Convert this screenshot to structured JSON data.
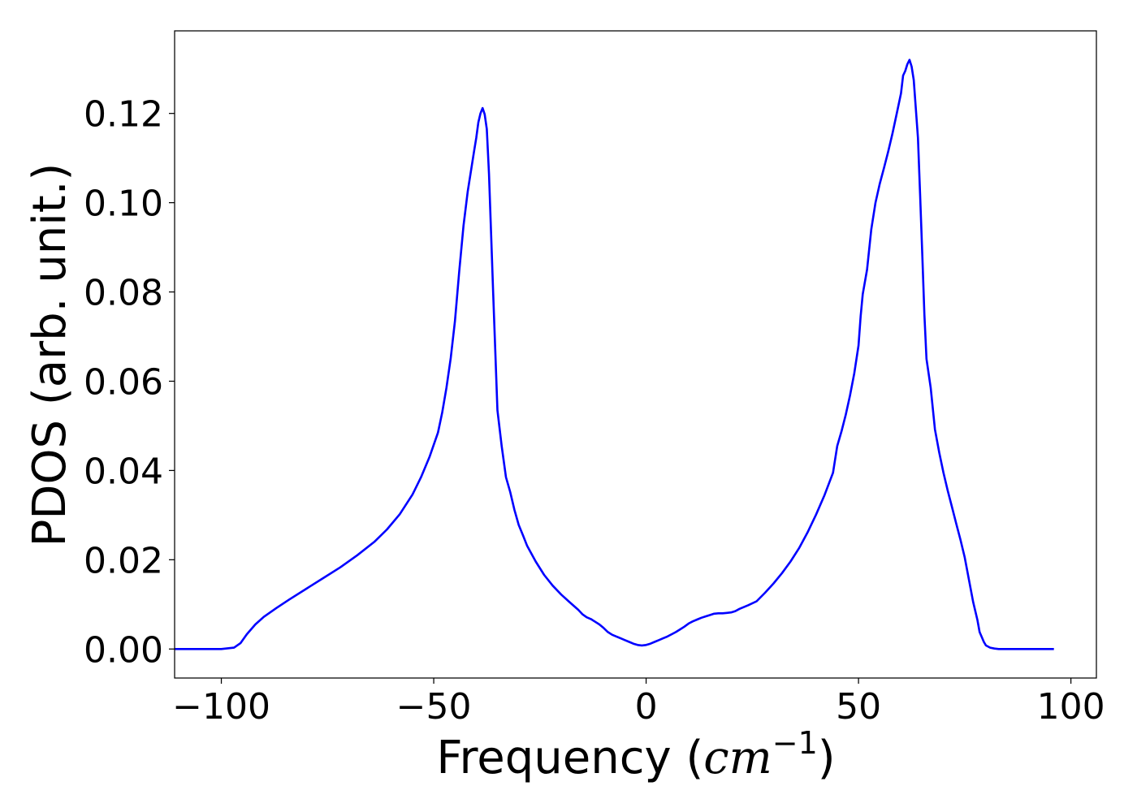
{
  "chart_data": {
    "type": "line",
    "title": "",
    "xlabel_main": "Frequency (",
    "xlabel_italic": "cm",
    "xlabel_sup": "−1",
    "xlabel_close": ")",
    "ylabel": "PDOS (arb. unit.)",
    "xlim": [
      -111,
      106
    ],
    "ylim": [
      -0.0065,
      0.1385
    ],
    "xticks": [
      -100,
      -50,
      0,
      50,
      100
    ],
    "xtick_labels": [
      "−100",
      "−50",
      "0",
      "50",
      "100"
    ],
    "yticks": [
      0.0,
      0.02,
      0.04,
      0.06,
      0.08,
      0.1,
      0.12
    ],
    "ytick_labels": [
      "0.00",
      "0.02",
      "0.04",
      "0.06",
      "0.08",
      "0.10",
      "0.12"
    ],
    "grid": false,
    "series": [
      {
        "color": "#0000ff",
        "x": [
          -111,
          -100,
          -97,
          -95.5,
          -94,
          -92,
          -90,
          -87,
          -84,
          -80,
          -76,
          -72,
          -68,
          -64,
          -61,
          -58,
          -55,
          -53,
          -51,
          -49,
          -48,
          -47,
          -46,
          -45,
          -44,
          -43,
          -42,
          -41,
          -40.5,
          -40,
          -39.5,
          -39,
          -38.5,
          -38,
          -37.5,
          -37,
          -36.5,
          -36,
          -35,
          -34,
          -33,
          -32,
          -31,
          -30,
          -29,
          -28,
          -26,
          -24,
          -22,
          -20,
          -18,
          -16,
          -15,
          -14,
          -13,
          -12,
          -11,
          -10,
          -9,
          -8,
          -7,
          -6,
          -5,
          -4,
          -3,
          -2,
          -1,
          0,
          1,
          2,
          3,
          4,
          5,
          6,
          7,
          8,
          9,
          10,
          11,
          12,
          13,
          14,
          15,
          16,
          17,
          18,
          19,
          20,
          21,
          22,
          24,
          26,
          28,
          30,
          32,
          34,
          36,
          38,
          40,
          42,
          44,
          45,
          46,
          47,
          48,
          49,
          50,
          50.5,
          51,
          52,
          53,
          54,
          55,
          56,
          57,
          58,
          59,
          60,
          60.5,
          61,
          61.5,
          62,
          62.5,
          63,
          63.5,
          64,
          64.5,
          65,
          65.5,
          66,
          67,
          68,
          69,
          70,
          71,
          72,
          73,
          74,
          75,
          76,
          77,
          78,
          78.5,
          79,
          79.5,
          80,
          81,
          82,
          83,
          85,
          96
        ],
        "y": [
          0.0,
          0.0,
          0.0003,
          0.0013,
          0.0033,
          0.0055,
          0.0072,
          0.0092,
          0.0111,
          0.0135,
          0.0159,
          0.0183,
          0.021,
          0.024,
          0.0268,
          0.0302,
          0.0346,
          0.0385,
          0.043,
          0.0485,
          0.053,
          0.0585,
          0.0652,
          0.0735,
          0.0845,
          0.0948,
          0.1025,
          0.1085,
          0.1115,
          0.1145,
          0.118,
          0.12,
          0.1212,
          0.1198,
          0.1165,
          0.1065,
          0.093,
          0.0795,
          0.0535,
          0.0455,
          0.0385,
          0.0352,
          0.0312,
          0.0278,
          0.0255,
          0.0231,
          0.0196,
          0.0166,
          0.0142,
          0.0122,
          0.0105,
          0.0088,
          0.0078,
          0.0071,
          0.0067,
          0.0061,
          0.0055,
          0.0047,
          0.0038,
          0.0032,
          0.0028,
          0.0024,
          0.002,
          0.0016,
          0.0012,
          0.0009,
          0.0008,
          0.0009,
          0.0012,
          0.0016,
          0.002,
          0.0024,
          0.0028,
          0.0033,
          0.0038,
          0.0044,
          0.005,
          0.0057,
          0.0062,
          0.0066,
          0.007,
          0.0073,
          0.0076,
          0.0079,
          0.008,
          0.008,
          0.0081,
          0.0082,
          0.0085,
          0.009,
          0.0098,
          0.0107,
          0.0126,
          0.0147,
          0.017,
          0.0196,
          0.0226,
          0.0261,
          0.0301,
          0.0345,
          0.0395,
          0.0455,
          0.0488,
          0.0525,
          0.0568,
          0.0618,
          0.068,
          0.0745,
          0.0795,
          0.085,
          0.094,
          0.1,
          0.1042,
          0.1078,
          0.1115,
          0.1155,
          0.12,
          0.1245,
          0.1285,
          0.1295,
          0.131,
          0.132,
          0.1305,
          0.1275,
          0.121,
          0.1145,
          0.102,
          0.0885,
          0.075,
          0.065,
          0.0585,
          0.0492,
          0.044,
          0.0395,
          0.0355,
          0.0318,
          0.0281,
          0.0245,
          0.0205,
          0.0155,
          0.0105,
          0.0065,
          0.0038,
          0.0027,
          0.0016,
          0.0008,
          0.0003,
          0.0001,
          0.0,
          0.0,
          0.0
        ]
      }
    ]
  }
}
